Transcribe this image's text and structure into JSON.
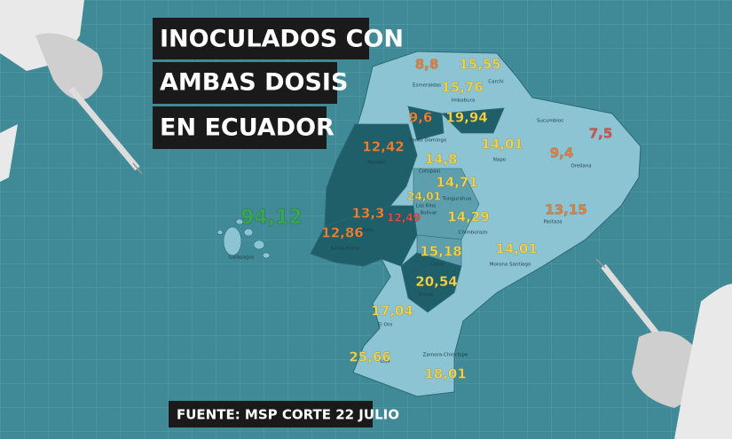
{
  "title": [
    "INOCULADOS CON",
    "AMBAS DOSIS",
    "EN ECUADOR"
  ],
  "source": "FUENTE: MSP CORTE 22 JULIO",
  "provinces": [
    {
      "name": "Esmeraldas",
      "value": "8,8",
      "color": "#e8823a"
    },
    {
      "name": "Carchi",
      "value": "15,55",
      "color": "#f3d34a"
    },
    {
      "name": "Imbabura",
      "value": "15,76",
      "color": "#f3d34a"
    },
    {
      "name": "Santo Domingo",
      "value": "9,6",
      "color": "#e8823a"
    },
    {
      "value": "19,94",
      "color": "#f3d34a"
    },
    {
      "name": "Sucumbios",
      "value": "7,5",
      "color": "#e0504a"
    },
    {
      "name": "Orellana",
      "value": "9,4",
      "color": "#e8823a"
    },
    {
      "name": "Napo",
      "value": "14,01",
      "color": "#f3d34a"
    },
    {
      "name": "Manabí",
      "value": "12,42",
      "color": "#e8823a"
    },
    {
      "name": "Cotopaxi",
      "value": "14,8",
      "color": "#f3d34a"
    },
    {
      "name": "Tungurahua",
      "value": "14,71",
      "color": "#f3d34a"
    },
    {
      "name": "Los Ríos",
      "value": "24,01",
      "color": "#f3d34a"
    },
    {
      "name": "Bolívar",
      "value": "12,49",
      "color": "#e0504a"
    },
    {
      "name": "Chimborazo",
      "value": "14,29",
      "color": "#f3d34a"
    },
    {
      "name": "Pastaza",
      "value": "13,15",
      "color": "#e8823a"
    },
    {
      "name": "Guayas",
      "value": "13,3",
      "color": "#e8823a"
    },
    {
      "name": "Santa Elena",
      "value": "12,86",
      "color": "#e8823a"
    },
    {
      "name": "Galápagos",
      "value": "94,12",
      "color": "#3aa655"
    },
    {
      "name": "Cañar",
      "value": "15,18",
      "color": "#f3d34a"
    },
    {
      "name": "Morona Santiago",
      "value": "14,01",
      "color": "#f3d34a"
    },
    {
      "name": "Azuay",
      "value": "20,54",
      "color": "#f3d34a"
    },
    {
      "name": "El Oro",
      "value": "17,04",
      "color": "#f3d34a"
    },
    {
      "name": "Loja",
      "value": "25,66",
      "color": "#f3d34a"
    },
    {
      "name": "Zamora-Chinchipe",
      "value": "18,01",
      "color": "#f3d34a"
    }
  ]
}
